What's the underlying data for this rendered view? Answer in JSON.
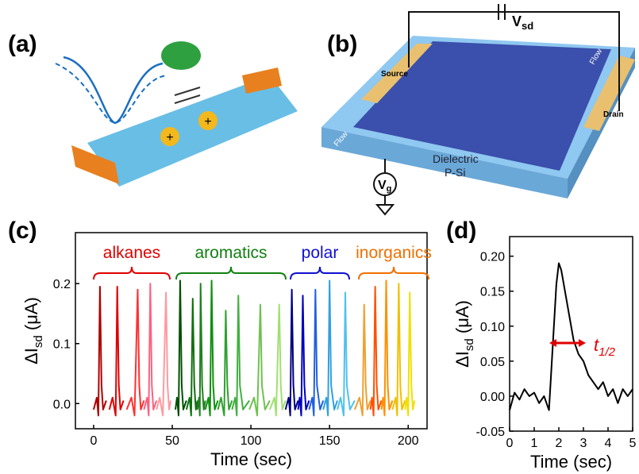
{
  "panels": {
    "a": "(a)",
    "b": "(b)",
    "c": "(c)",
    "d": "(d)"
  },
  "illustration_a": {
    "charge": "+",
    "charge2": "+"
  },
  "illustration_b": {
    "vsd": "V",
    "vsd_sub": "sd",
    "vg": "V",
    "vg_sub": "g",
    "source": "Source",
    "drain": "Drain",
    "flow_in": "Flow",
    "flow_out": "Flow",
    "dielectric": "Dielectric",
    "substrate": "P-Si"
  },
  "chart_data": [
    {
      "type": "line",
      "x_label": "Time (sec)",
      "y_label": "ΔI",
      "y_label_sub": "sd",
      "y_label_unit": " (μA)",
      "xlim": [
        -11.6,
        212
      ],
      "xticks": [
        0,
        50,
        100,
        150,
        200
      ],
      "ylim": [
        -0.042,
        0.285
      ],
      "yticks": [
        {
          "value": 0,
          "label": "0.0"
        },
        0.1,
        0.2
      ],
      "annotations": [
        {
          "text": "alkanes",
          "color": "#e00000"
        },
        {
          "text": "aromatics",
          "color": "#108010"
        },
        {
          "text": "polar",
          "color": "#1010d0"
        },
        {
          "text": "inorganics",
          "color": "#f07000"
        }
      ],
      "series": [
        {
          "color": "#b00000",
          "x": [
            0,
            2,
            3,
            4,
            5,
            6,
            8
          ],
          "values": [
            -0.01,
            0.01,
            -0.02,
            0.195,
            0.03,
            -0.01,
            0.005
          ]
        },
        {
          "color": "#e00000",
          "x": [
            10,
            12,
            14,
            15,
            16,
            17,
            19
          ],
          "values": [
            -0.01,
            0.01,
            -0.02,
            0.195,
            0.03,
            -0.01,
            0.005
          ]
        },
        {
          "color": "#ff3030",
          "x": [
            21,
            24,
            26,
            28,
            29,
            30,
            32
          ],
          "values": [
            -0.01,
            0.01,
            -0.02,
            0.19,
            0.03,
            -0.01,
            0.005
          ]
        },
        {
          "color": "#ff6080",
          "x": [
            32,
            34,
            35,
            36,
            37,
            38,
            40
          ],
          "values": [
            -0.01,
            0.01,
            -0.02,
            0.2,
            0.03,
            -0.01,
            0.005
          ]
        },
        {
          "color": "#ff9aa0",
          "x": [
            40,
            42,
            44,
            46,
            47,
            48,
            49
          ],
          "values": [
            -0.01,
            0.01,
            -0.02,
            0.185,
            0.03,
            -0.01,
            0.005
          ]
        },
        {
          "color": "#005000",
          "x": [
            52,
            53,
            54,
            55,
            56,
            57,
            59
          ],
          "values": [
            -0.01,
            0.01,
            -0.02,
            0.205,
            0.03,
            -0.01,
            0.005
          ]
        },
        {
          "color": "#107010",
          "x": [
            59,
            61,
            62,
            63,
            64,
            65,
            66
          ],
          "values": [
            -0.01,
            0.01,
            -0.02,
            0.175,
            0.03,
            -0.01,
            0.005
          ]
        },
        {
          "color": "#208020",
          "x": [
            66,
            67,
            67.5,
            68,
            69,
            70,
            71
          ],
          "values": [
            -0.01,
            0.01,
            -0.02,
            0.2,
            0.03,
            -0.01,
            0.005
          ]
        },
        {
          "color": "#109010",
          "x": [
            71,
            73,
            74,
            75,
            76,
            77,
            79
          ],
          "values": [
            -0.01,
            0.01,
            -0.02,
            0.205,
            0.03,
            -0.01,
            0.005
          ]
        },
        {
          "color": "#30a030",
          "x": [
            79,
            81,
            83,
            84,
            85,
            86,
            88
          ],
          "values": [
            -0.01,
            0.01,
            -0.02,
            0.155,
            0.03,
            -0.01,
            0.005
          ]
        },
        {
          "color": "#40b040",
          "x": [
            88,
            90,
            91,
            92,
            93,
            95,
            99
          ],
          "values": [
            -0.01,
            0.01,
            -0.02,
            0.18,
            0.03,
            -0.01,
            0.005
          ]
        },
        {
          "color": "#70c050",
          "x": [
            99,
            102,
            104,
            106,
            107,
            109,
            112
          ],
          "values": [
            -0.01,
            0.01,
            -0.02,
            0.165,
            0.03,
            -0.01,
            0.005
          ]
        },
        {
          "color": "#a0e070",
          "x": [
            112,
            115,
            116,
            118,
            119,
            120,
            122
          ],
          "values": [
            -0.01,
            0.01,
            -0.02,
            0.165,
            0.03,
            -0.01,
            0.005
          ]
        },
        {
          "color": "#000080",
          "x": [
            122,
            124,
            125,
            126,
            127,
            128,
            130
          ],
          "values": [
            -0.01,
            0.01,
            -0.02,
            0.19,
            0.03,
            -0.01,
            0.005
          ]
        },
        {
          "color": "#0000c0",
          "x": [
            130,
            131,
            132,
            133,
            134,
            135,
            137
          ],
          "values": [
            -0.01,
            0.01,
            -0.02,
            0.18,
            0.03,
            -0.01,
            0.005
          ]
        },
        {
          "color": "#2060e0",
          "x": [
            137,
            139,
            140,
            141,
            142,
            144,
            146
          ],
          "values": [
            -0.01,
            0.01,
            -0.02,
            0.19,
            0.03,
            -0.01,
            0.005
          ]
        },
        {
          "color": "#30a0e0",
          "x": [
            146,
            148,
            149,
            150,
            151,
            153,
            155
          ],
          "values": [
            -0.01,
            0.01,
            -0.02,
            0.205,
            0.03,
            -0.01,
            0.005
          ]
        },
        {
          "color": "#50c0f0",
          "x": [
            155,
            157,
            159,
            160,
            161,
            163,
            166
          ],
          "values": [
            -0.01,
            0.01,
            -0.02,
            0.185,
            0.03,
            -0.01,
            0.005
          ]
        },
        {
          "color": "#f0a030",
          "x": [
            166,
            169,
            171,
            172,
            173,
            174,
            176
          ],
          "values": [
            -0.01,
            0.01,
            -0.02,
            0.165,
            0.03,
            -0.01,
            0.005
          ]
        },
        {
          "color": "#ff5000",
          "x": [
            176,
            177,
            178,
            179,
            180,
            181,
            183
          ],
          "values": [
            -0.01,
            0.01,
            -0.02,
            0.195,
            0.03,
            -0.01,
            0.005
          ]
        },
        {
          "color": "#ff9000",
          "x": [
            183,
            184,
            185,
            186,
            187,
            188,
            190
          ],
          "values": [
            -0.01,
            0.01,
            -0.02,
            0.205,
            0.03,
            -0.01,
            0.005
          ]
        },
        {
          "color": "#f0c000",
          "x": [
            190,
            192,
            193,
            194,
            195,
            196,
            198
          ],
          "values": [
            -0.01,
            0.01,
            -0.02,
            0.2,
            0.03,
            -0.01,
            0.005
          ]
        },
        {
          "color": "#f0e000",
          "x": [
            198,
            199,
            200,
            201,
            202,
            203,
            204
          ],
          "values": [
            -0.01,
            0.01,
            -0.02,
            0.185,
            0.03,
            -0.01,
            0.005
          ]
        }
      ]
    },
    {
      "type": "line",
      "x_label": "Time (sec)",
      "y_label": "ΔI",
      "y_label_sub": "sd",
      "y_label_unit": " (μA)",
      "xlim": [
        0,
        5
      ],
      "xticks": [
        0,
        1,
        2,
        3,
        4,
        5
      ],
      "ylim": [
        -0.05,
        0.228
      ],
      "yticks": [
        -0.05,
        {
          "value": 0,
          "label": "0.00"
        },
        0.05,
        {
          "value": 0.1,
          "label": "0.10"
        },
        0.15,
        {
          "value": 0.2,
          "label": "0.20"
        }
      ],
      "annotations": [
        {
          "text": "t",
          "subscript": "1/2",
          "color": "#e00000"
        }
      ],
      "series": [
        {
          "color": "#000000",
          "x": [
            0,
            0.2,
            0.4,
            0.6,
            0.8,
            1,
            1.2,
            1.4,
            1.6,
            1.7,
            1.8,
            1.9,
            2,
            2.1,
            2.2,
            2.4,
            2.6,
            2.8,
            3,
            3.2,
            3.4,
            3.6,
            3.8,
            4,
            4.2,
            4.4,
            4.6,
            4.8,
            5
          ],
          "values": [
            -0.02,
            0.005,
            -0.005,
            0.01,
            0,
            0.005,
            -0.01,
            0.0,
            -0.02,
            0.04,
            0.1,
            0.16,
            0.19,
            0.18,
            0.16,
            0.12,
            0.08,
            0.06,
            0.05,
            0.03,
            0.02,
            0.01,
            0.02,
            0.0,
            0.01,
            -0.01,
            0.01,
            0.0,
            0.01
          ]
        }
      ]
    }
  ]
}
